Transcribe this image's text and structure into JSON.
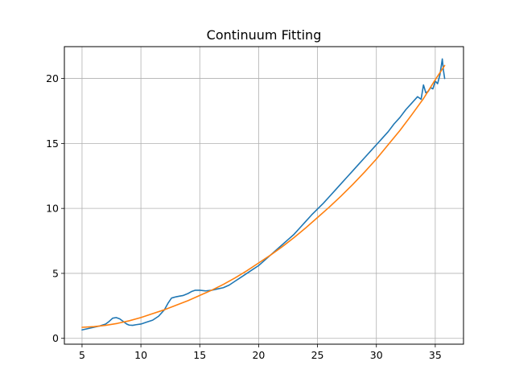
{
  "chart_data": {
    "type": "line",
    "title": "Continuum Fitting",
    "xlabel": "",
    "ylabel": "",
    "xlim": [
      3.5,
      37.4
    ],
    "ylim": [
      -0.45,
      22.45
    ],
    "xticks": [
      5,
      10,
      15,
      20,
      25,
      30,
      35
    ],
    "yticks": [
      0,
      5,
      10,
      15,
      20
    ],
    "grid": true,
    "legend": "none",
    "series": [
      {
        "color": "#1f77b4",
        "x": [
          5.0,
          5.5,
          6.0,
          6.5,
          7.0,
          7.3,
          7.6,
          7.9,
          8.2,
          8.5,
          8.8,
          9.0,
          9.3,
          9.6,
          10.0,
          10.5,
          11.0,
          11.5,
          12.0,
          12.3,
          12.6,
          12.8,
          13.0,
          13.3,
          13.6,
          14.0,
          14.3,
          14.6,
          15.0,
          15.5,
          16.0,
          16.5,
          17.0,
          17.5,
          18.0,
          18.5,
          19.0,
          19.5,
          20.0,
          20.5,
          21.0,
          21.5,
          22.0,
          22.5,
          23.0,
          23.5,
          24.0,
          24.5,
          25.0,
          25.5,
          26.0,
          26.5,
          27.0,
          27.5,
          28.0,
          28.5,
          29.0,
          29.5,
          30.0,
          30.5,
          31.0,
          31.5,
          32.0,
          32.5,
          33.0,
          33.5,
          33.8,
          34.0,
          34.2,
          34.4,
          34.6,
          34.8,
          35.0,
          35.2,
          35.4,
          35.6,
          35.7,
          35.8
        ],
        "values": [
          0.65,
          0.75,
          0.85,
          0.95,
          1.1,
          1.3,
          1.55,
          1.6,
          1.5,
          1.3,
          1.1,
          1.02,
          1.0,
          1.05,
          1.1,
          1.25,
          1.4,
          1.7,
          2.2,
          2.7,
          3.1,
          3.15,
          3.2,
          3.25,
          3.3,
          3.45,
          3.6,
          3.7,
          3.7,
          3.65,
          3.7,
          3.8,
          3.9,
          4.1,
          4.4,
          4.7,
          5.0,
          5.3,
          5.6,
          6.0,
          6.4,
          6.8,
          7.2,
          7.6,
          8.0,
          8.5,
          9.0,
          9.5,
          9.95,
          10.4,
          10.9,
          11.4,
          11.9,
          12.4,
          12.9,
          13.4,
          13.9,
          14.4,
          14.9,
          15.4,
          15.9,
          16.5,
          17.0,
          17.6,
          18.1,
          18.6,
          18.4,
          19.5,
          18.9,
          19.0,
          19.3,
          19.2,
          19.8,
          19.6,
          20.3,
          21.5,
          20.6,
          20.0
        ]
      },
      {
        "color": "#ff7f0e",
        "x": [
          5,
          6,
          7,
          8,
          9,
          10,
          11,
          12,
          13,
          14,
          15,
          16,
          17,
          18,
          19,
          20,
          21,
          22,
          23,
          24,
          25,
          26,
          27,
          28,
          29,
          30,
          31,
          32,
          33,
          34,
          35,
          35.8
        ],
        "values": [
          0.85,
          0.9,
          1.0,
          1.15,
          1.35,
          1.6,
          1.9,
          2.2,
          2.55,
          2.9,
          3.3,
          3.7,
          4.15,
          4.65,
          5.2,
          5.8,
          6.4,
          7.05,
          7.75,
          8.5,
          9.3,
          10.1,
          10.95,
          11.85,
          12.8,
          13.8,
          14.9,
          16.0,
          17.2,
          18.45,
          19.9,
          21.0
        ]
      }
    ]
  }
}
